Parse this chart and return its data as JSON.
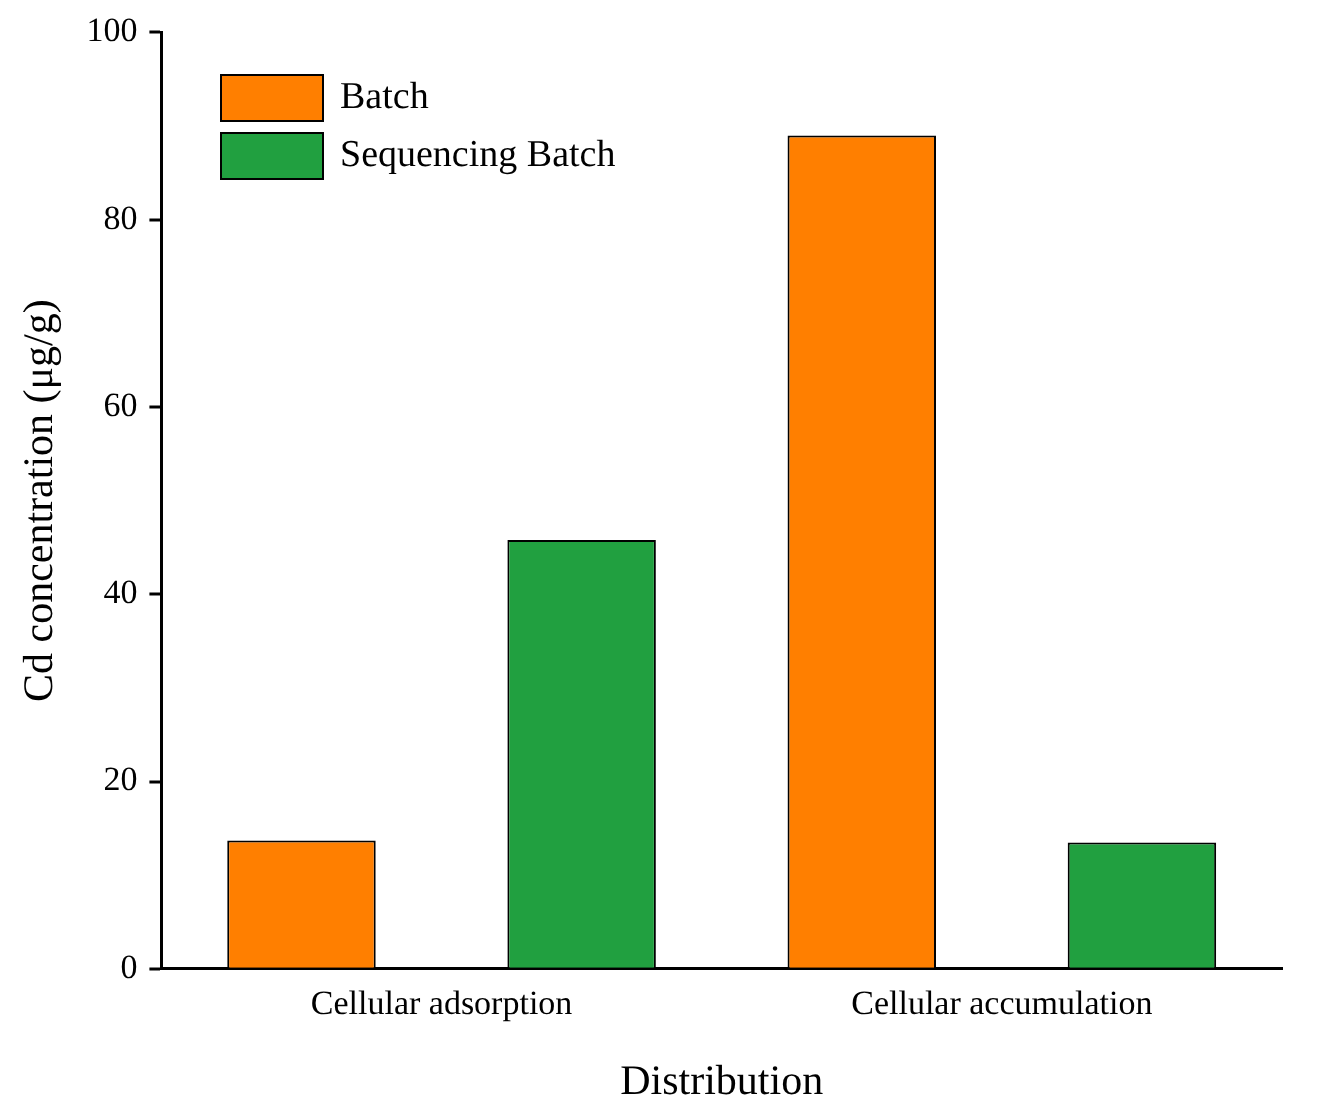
{
  "chart_data": {
    "type": "bar",
    "xlabel": "Distribution",
    "ylabel": "Cd concentration (μg/g)",
    "categories": [
      "Cellular adsorption",
      "Cellular accumulation"
    ],
    "series": [
      {
        "name": "Batch",
        "color": "#ff7f00",
        "values": [
          13.7,
          89.0
        ]
      },
      {
        "name": "Sequencing Batch",
        "color": "#21a040",
        "values": [
          45.8,
          13.5
        ]
      }
    ],
    "ylim": [
      0,
      100
    ],
    "yticks": [
      0,
      20,
      40,
      60,
      80,
      100
    ],
    "grid": false,
    "legend": "top left"
  }
}
